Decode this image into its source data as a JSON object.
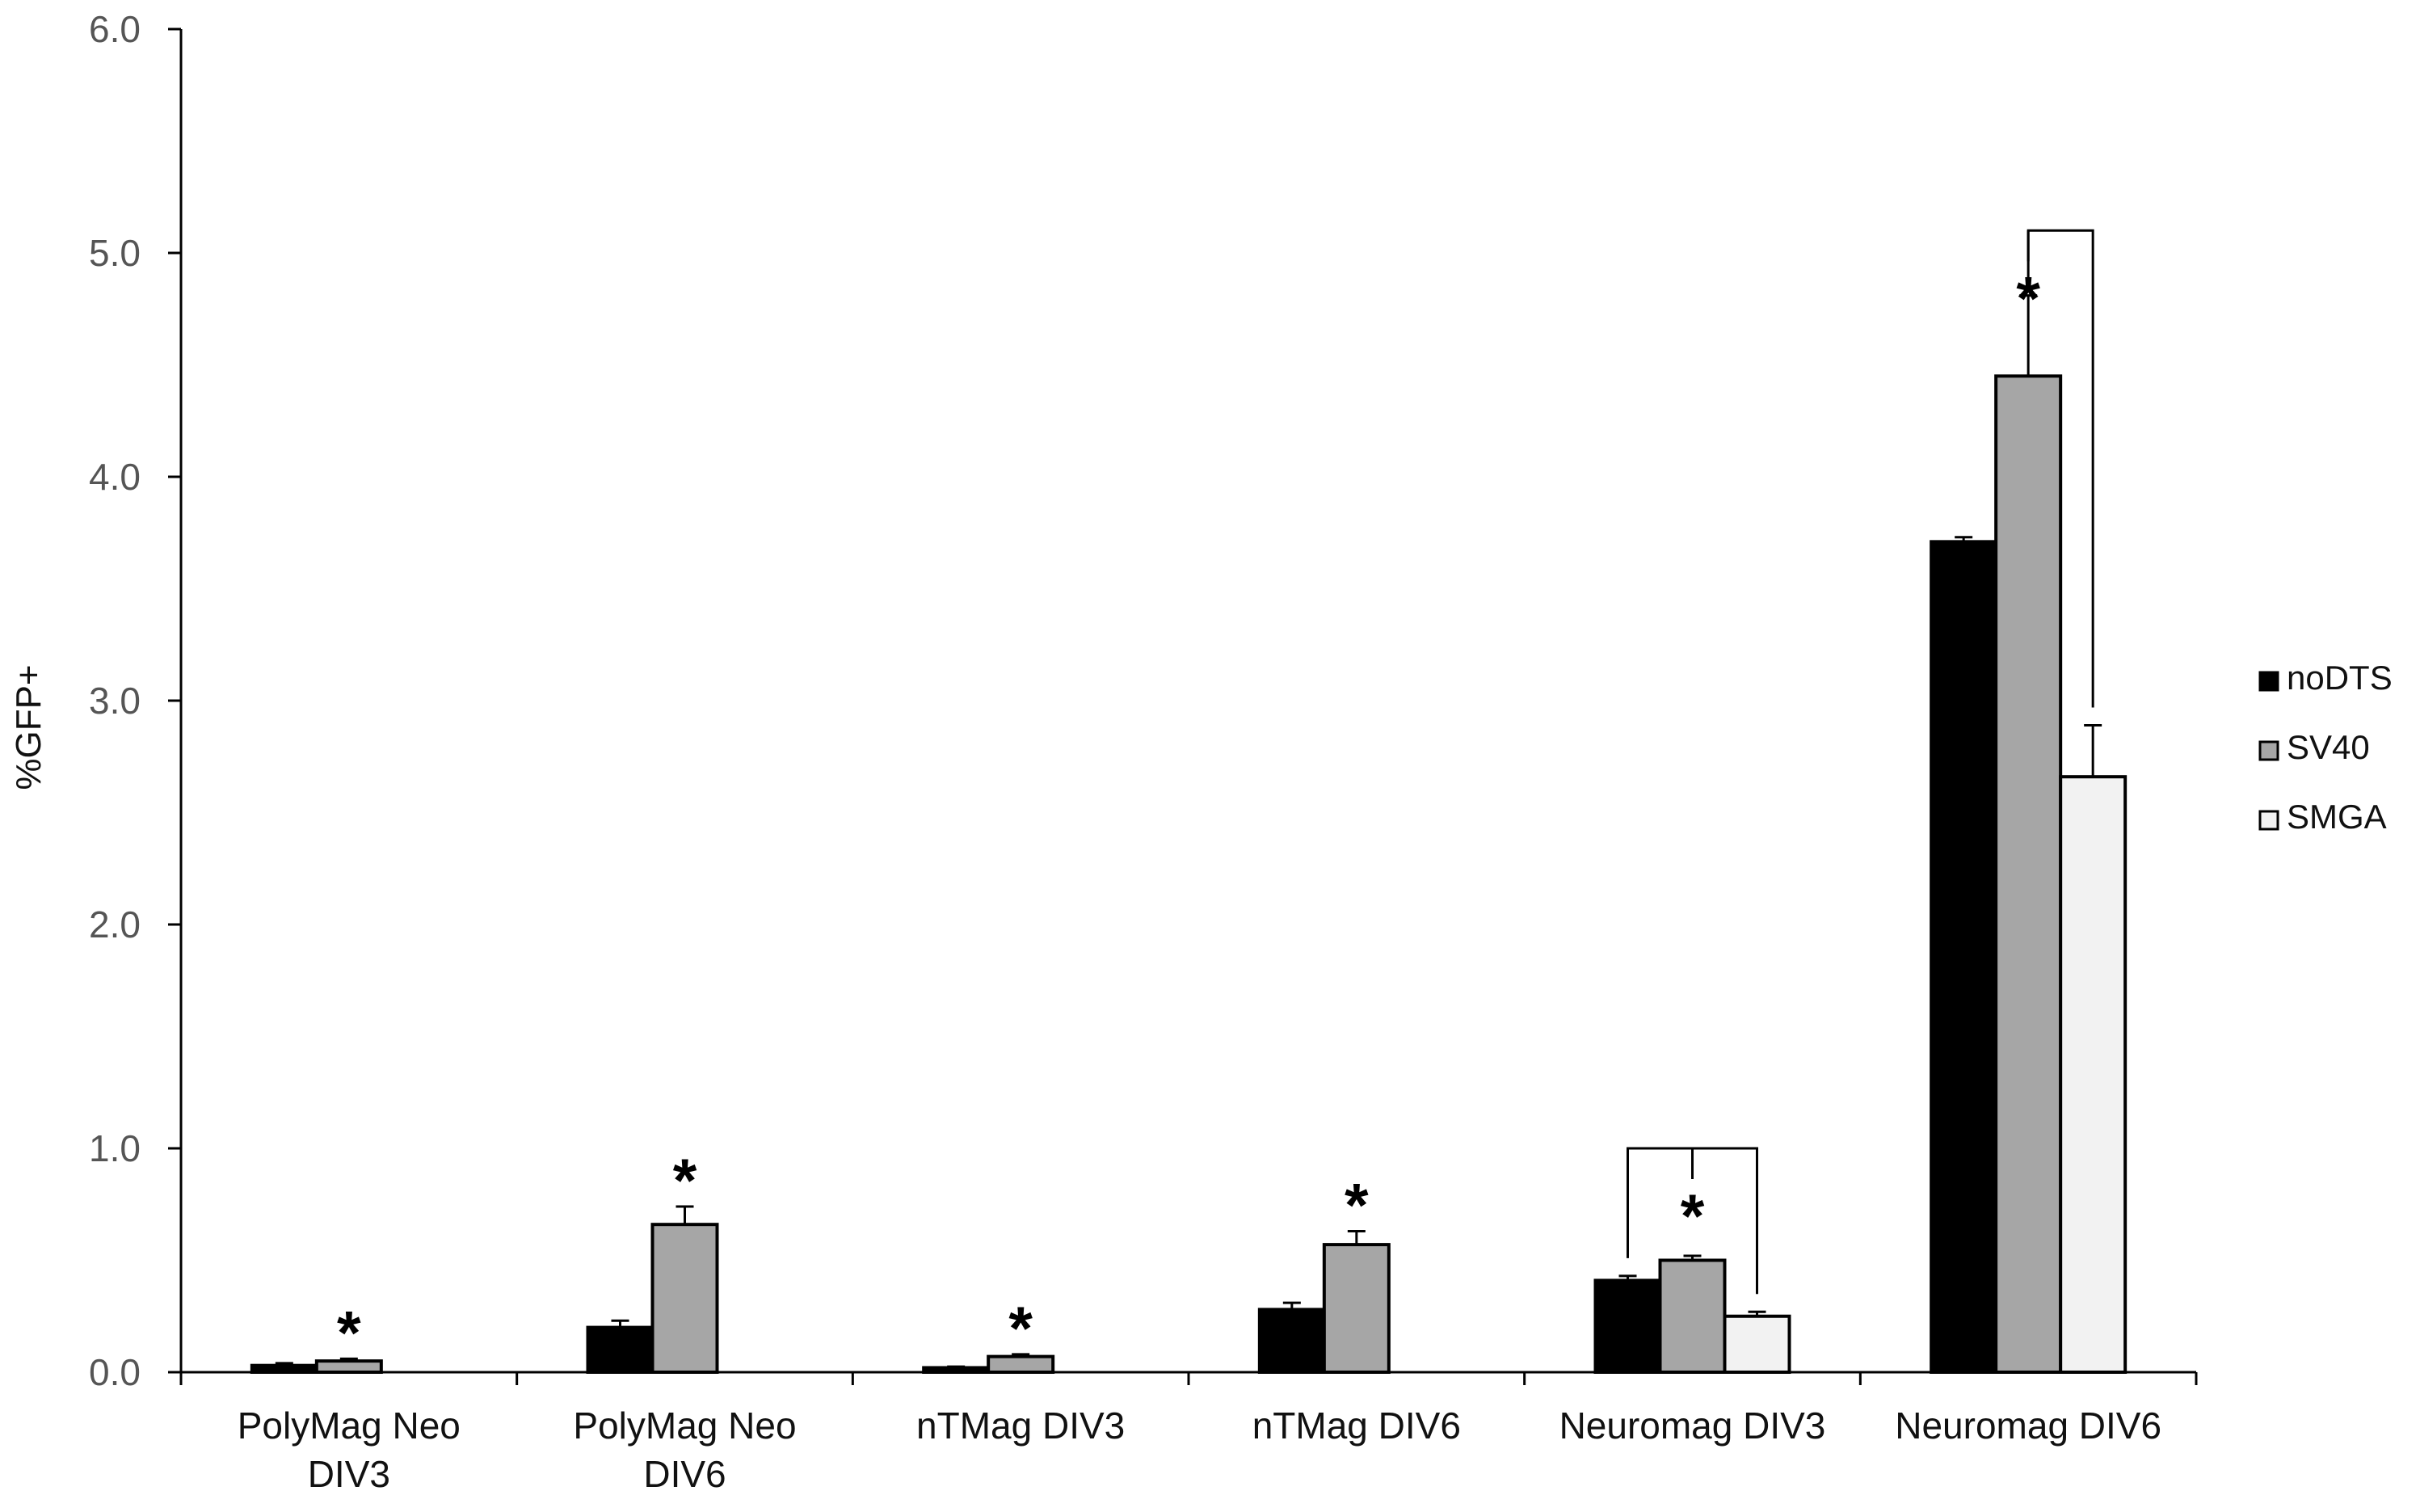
{
  "chart_data": {
    "type": "bar",
    "title": "",
    "xlabel": "",
    "ylabel": "%GFP+",
    "ylim": [
      0,
      6
    ],
    "yticks": [
      "0.0",
      "1.0",
      "2.0",
      "3.0",
      "4.0",
      "5.0",
      "6.0"
    ],
    "grid": false,
    "legend_position": "right",
    "categories": [
      [
        "PolyMag Neo",
        "DIV3"
      ],
      [
        "PolyMag Neo",
        "DIV6"
      ],
      [
        "nTMag DIV3"
      ],
      [
        "nTMag DIV6"
      ],
      [
        "Neuromag DIV3"
      ],
      [
        "Neuromag DIV6"
      ]
    ],
    "series": [
      {
        "name": "noDTS",
        "color": "#000000",
        "values": [
          0.03,
          0.2,
          0.02,
          0.28,
          0.41,
          3.71
        ],
        "errors": [
          0.01,
          0.03,
          0.005,
          0.03,
          0.02,
          0.02
        ]
      },
      {
        "name": "SV40",
        "color": "#a6a6a6",
        "values": [
          0.05,
          0.66,
          0.07,
          0.57,
          0.5,
          4.45
        ],
        "errors": [
          0.01,
          0.08,
          0.01,
          0.06,
          0.02,
          0.36
        ]
      },
      {
        "name": "SMGA",
        "color": "#f2f2f2",
        "values": [
          null,
          null,
          null,
          null,
          0.25,
          2.66
        ],
        "errors": [
          null,
          null,
          null,
          null,
          0.02,
          0.23
        ]
      }
    ],
    "significance_marker": "*",
    "significance": [
      {
        "category": 0,
        "series": 1
      },
      {
        "category": 1,
        "series": 1
      },
      {
        "category": 2,
        "series": 1
      },
      {
        "category": 3,
        "series": 1
      },
      {
        "category": 4,
        "series": 1,
        "bracket": [
          0,
          2
        ],
        "bracket_value": 1.0
      },
      {
        "category": 5,
        "series": 1,
        "bracket": [
          1,
          2
        ],
        "bracket_value": 5.1
      }
    ]
  }
}
